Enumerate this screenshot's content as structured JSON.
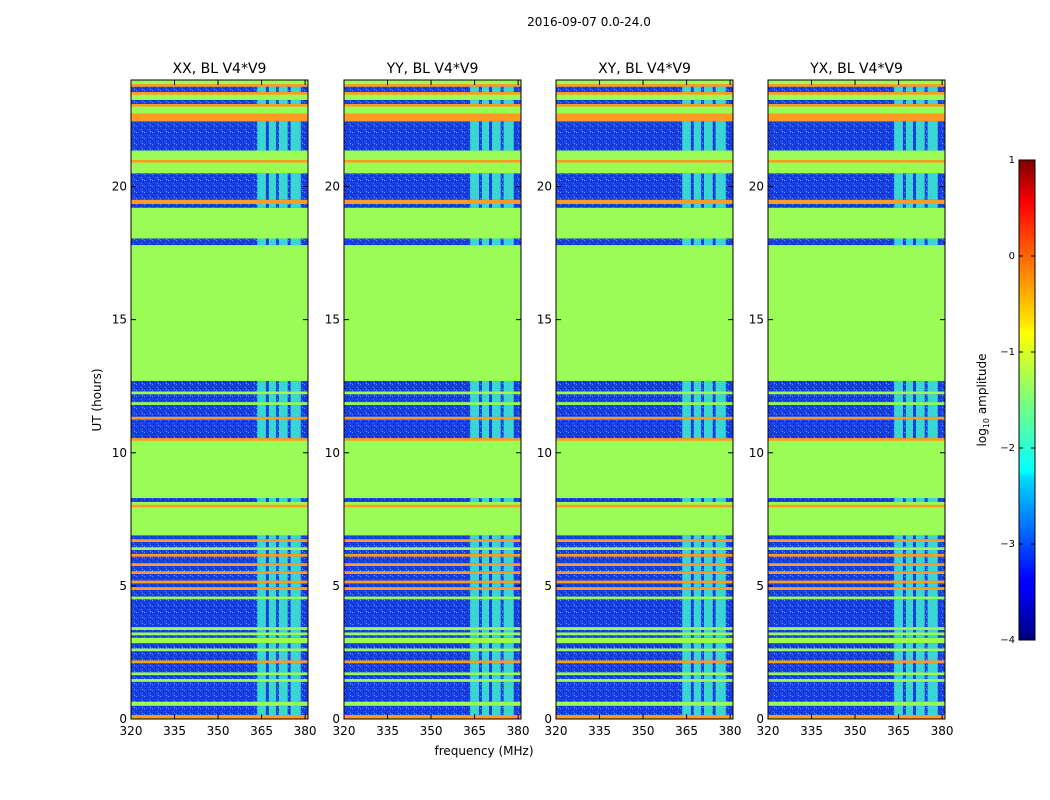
{
  "figure": {
    "suptitle": "2016-09-07 0.0-24.0",
    "ylabel": "UT (hours)",
    "xlabel": "frequency (MHz)"
  },
  "chart_data": {
    "type": "heatmap",
    "colormap": "jet",
    "x_range": [
      320,
      381
    ],
    "y_range": [
      0,
      24
    ],
    "xticks": [
      320,
      335,
      350,
      365,
      380
    ],
    "yticks": [
      0,
      5,
      10,
      15,
      20
    ],
    "panels": [
      {
        "title": "XX, BL V4*V9",
        "pol": "XX"
      },
      {
        "title": "YY, BL V4*V9",
        "pol": "YY"
      },
      {
        "title": "XY, BL V4*V9",
        "pol": "XY"
      },
      {
        "title": "YX, BL V4*V9",
        "pol": "YX"
      }
    ],
    "colorbar": {
      "label_prefix": "log",
      "label_sub": "10",
      "label_suffix": " amplitude",
      "range": [
        -4,
        1
      ],
      "ticks": [
        1,
        0,
        -1,
        -2,
        -3,
        -4
      ],
      "tick_labels": [
        "1",
        "0",
        "−1",
        "−2",
        "−3",
        "−4"
      ]
    },
    "bands": {
      "hours": [
        [
          0.0,
          0.15,
          "orange"
        ],
        [
          0.15,
          0.5,
          "lowdata"
        ],
        [
          0.5,
          0.65,
          "flag"
        ],
        [
          0.65,
          1.4,
          "lowdata"
        ],
        [
          1.4,
          1.5,
          "flag"
        ],
        [
          1.5,
          1.65,
          "lowdata"
        ],
        [
          1.65,
          1.75,
          "flag"
        ],
        [
          1.75,
          2.1,
          "lowdata"
        ],
        [
          2.1,
          2.2,
          "orange"
        ],
        [
          2.2,
          2.55,
          "lowdata"
        ],
        [
          2.55,
          2.65,
          "flag"
        ],
        [
          2.65,
          2.85,
          "lowdata"
        ],
        [
          2.85,
          3.05,
          "flag"
        ],
        [
          3.05,
          3.15,
          "lowdata"
        ],
        [
          3.15,
          3.25,
          "flag"
        ],
        [
          3.25,
          3.35,
          "lowdata"
        ],
        [
          3.35,
          3.45,
          "flag"
        ],
        [
          3.45,
          4.5,
          "lowdata"
        ],
        [
          4.5,
          4.6,
          "flag"
        ],
        [
          4.6,
          4.85,
          "lowdata"
        ],
        [
          4.85,
          4.95,
          "orange"
        ],
        [
          4.95,
          5.1,
          "lowdata"
        ],
        [
          5.1,
          5.2,
          "orange"
        ],
        [
          5.2,
          5.45,
          "lowdata"
        ],
        [
          5.45,
          5.55,
          "orange"
        ],
        [
          5.55,
          5.75,
          "lowdata"
        ],
        [
          5.75,
          5.85,
          "orange"
        ],
        [
          5.85,
          6.1,
          "lowdata"
        ],
        [
          6.1,
          6.2,
          "orange"
        ],
        [
          6.2,
          6.35,
          "lowdata"
        ],
        [
          6.35,
          6.45,
          "flag"
        ],
        [
          6.45,
          6.65,
          "lowdata"
        ],
        [
          6.65,
          6.75,
          "orange"
        ],
        [
          6.75,
          6.9,
          "lowdata"
        ],
        [
          6.9,
          7.05,
          "flag"
        ],
        [
          7.05,
          7.95,
          "flag"
        ],
        [
          7.95,
          8.05,
          "orange"
        ],
        [
          8.05,
          8.15,
          "flag"
        ],
        [
          8.15,
          8.3,
          "lowdata"
        ],
        [
          8.3,
          8.5,
          "flag"
        ],
        [
          8.5,
          10.45,
          "flag"
        ],
        [
          10.45,
          10.55,
          "orange"
        ],
        [
          10.55,
          11.25,
          "lowdata"
        ],
        [
          11.25,
          11.35,
          "orange"
        ],
        [
          11.35,
          11.8,
          "lowdata"
        ],
        [
          11.8,
          11.9,
          "flag"
        ],
        [
          11.9,
          12.2,
          "lowdata"
        ],
        [
          12.2,
          12.3,
          "flag"
        ],
        [
          12.3,
          12.7,
          "lowdata"
        ],
        [
          12.7,
          17.8,
          "flag"
        ],
        [
          17.8,
          18.05,
          "lowdata"
        ],
        [
          18.05,
          19.2,
          "flag"
        ],
        [
          19.2,
          19.35,
          "lowdata"
        ],
        [
          19.35,
          19.5,
          "orange"
        ],
        [
          19.5,
          20.5,
          "lowdata"
        ],
        [
          20.5,
          20.9,
          "flag"
        ],
        [
          20.9,
          21.0,
          "orange"
        ],
        [
          21.0,
          21.35,
          "flag"
        ],
        [
          21.35,
          22.45,
          "lowdata"
        ],
        [
          22.45,
          22.75,
          "orange"
        ],
        [
          22.75,
          23.0,
          "flag"
        ],
        [
          23.0,
          23.1,
          "orange"
        ],
        [
          23.1,
          23.25,
          "lowdata"
        ],
        [
          23.25,
          23.45,
          "flag"
        ],
        [
          23.45,
          23.55,
          "orange"
        ],
        [
          23.55,
          23.75,
          "lowdata"
        ],
        [
          23.75,
          23.85,
          "orange"
        ],
        [
          23.85,
          24.0,
          "flag"
        ]
      ],
      "rfi_channels_mhz": [
        [
          363.5,
          366.5
        ],
        [
          367.5,
          370.0
        ],
        [
          371.0,
          374.0
        ],
        [
          375.0,
          378.5
        ]
      ]
    }
  }
}
